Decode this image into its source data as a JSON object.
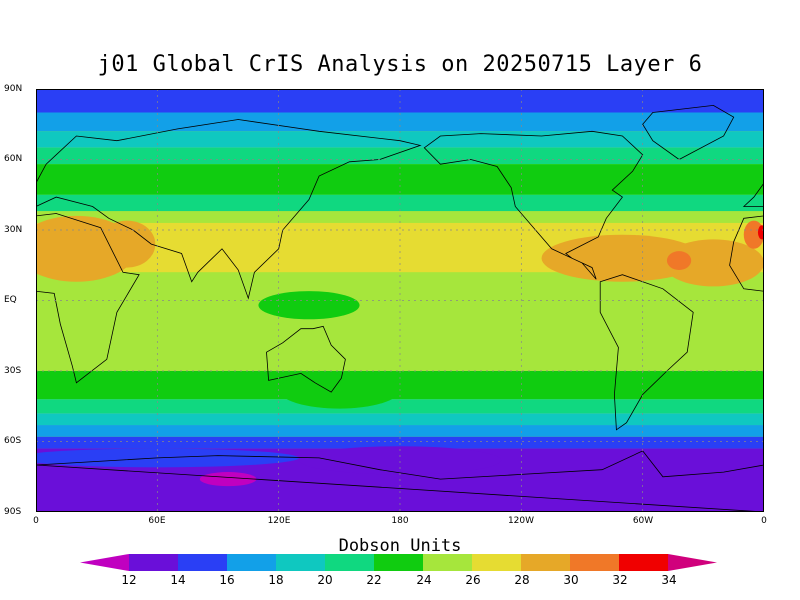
{
  "title": "j01 Global CrIS Analysis on 20250715 Layer 6",
  "y_ticks": [
    "90N",
    "60N",
    "30N",
    "EQ",
    "30S",
    "60S",
    "90S"
  ],
  "x_ticks": [
    "0",
    "60E",
    "120E",
    "180",
    "120W",
    "60W",
    "0"
  ],
  "colorbar": {
    "title": "Dobson Units",
    "labels": [
      "12",
      "14",
      "16",
      "18",
      "20",
      "22",
      "24",
      "26",
      "28",
      "30",
      "32",
      "34"
    ],
    "colors": [
      "#c000c0",
      "#6a0fd9",
      "#2a3ff5",
      "#12a0e8",
      "#0fc8c0",
      "#10d880",
      "#10cc10",
      "#a6e63c",
      "#e6dc32",
      "#e6a828",
      "#f07828",
      "#f00000",
      "#d0007c"
    ]
  },
  "map_layers": {
    "background": "#a6e63c",
    "bands": [
      {
        "from_lat": 90,
        "to_lat": 80,
        "color": "#2a3ff5"
      },
      {
        "from_lat": 80,
        "to_lat": 72,
        "color": "#12a0e8"
      },
      {
        "from_lat": 72,
        "to_lat": 65,
        "color": "#0fc8c0"
      },
      {
        "from_lat": 65,
        "to_lat": 58,
        "color": "#10d880"
      },
      {
        "from_lat": 58,
        "to_lat": 45,
        "color": "#10cc10"
      },
      {
        "from_lat": 45,
        "to_lat": 38,
        "color": "#10d880"
      },
      {
        "from_lat": 38,
        "to_lat": 33,
        "color": "#a6e63c"
      },
      {
        "from_lat": 33,
        "to_lat": 12,
        "color": "#e6dc32"
      },
      {
        "from_lat": 12,
        "to_lat": -8,
        "color": "#a6e63c"
      },
      {
        "from_lat": -8,
        "to_lat": -30,
        "color": "#a6e63c"
      },
      {
        "from_lat": -30,
        "to_lat": -42,
        "color": "#10cc10"
      },
      {
        "from_lat": -42,
        "to_lat": -48,
        "color": "#10d880"
      },
      {
        "from_lat": -48,
        "to_lat": -53,
        "color": "#0fc8c0"
      },
      {
        "from_lat": -53,
        "to_lat": -58,
        "color": "#12a0e8"
      },
      {
        "from_lat": -58,
        "to_lat": -63,
        "color": "#2a3ff5"
      },
      {
        "from_lat": -63,
        "to_lat": -90,
        "color": "#6a0fd9"
      }
    ],
    "blobs": [
      {
        "lon": 20,
        "lat": 22,
        "rlon": 30,
        "rlat": 14,
        "color": "#e6a828"
      },
      {
        "lon": 45,
        "lat": 24,
        "rlon": 14,
        "rlat": 10,
        "color": "#e6a828"
      },
      {
        "lon": 290,
        "lat": 18,
        "rlon": 40,
        "rlat": 10,
        "color": "#e6a828"
      },
      {
        "lon": 335,
        "lat": 16,
        "rlon": 25,
        "rlat": 10,
        "color": "#e6a828"
      },
      {
        "lon": 318,
        "lat": 17,
        "rlon": 6,
        "rlat": 4,
        "color": "#f07828"
      },
      {
        "lon": 355,
        "lat": 28,
        "rlon": 5,
        "rlat": 6,
        "color": "#f07828"
      },
      {
        "lon": 359,
        "lat": 29,
        "rlon": 2,
        "rlat": 3,
        "color": "#f00000"
      },
      {
        "lon": 80,
        "lat": 2,
        "rlon": 20,
        "rlat": 8,
        "color": "#a6e63c"
      },
      {
        "lon": 135,
        "lat": -2,
        "rlon": 25,
        "rlat": 6,
        "color": "#10cc10"
      },
      {
        "lon": 150,
        "lat": -38,
        "rlon": 30,
        "rlat": 8,
        "color": "#10cc10"
      },
      {
        "lon": 180,
        "lat": -68,
        "rlon": 50,
        "rlat": 6,
        "color": "#6a0fd9"
      },
      {
        "lon": 95,
        "lat": -76,
        "rlon": 14,
        "rlat": 3,
        "color": "#c000c0"
      },
      {
        "lon": 60,
        "lat": -67,
        "rlon": 70,
        "rlat": 4,
        "color": "#2a3ff5"
      }
    ],
    "landmasses": [
      {
        "name": "north-america",
        "points": [
          [
            192,
            65
          ],
          [
            200,
            70
          ],
          [
            220,
            71
          ],
          [
            250,
            70
          ],
          [
            275,
            72
          ],
          [
            290,
            70
          ],
          [
            300,
            62
          ],
          [
            295,
            55
          ],
          [
            285,
            47
          ],
          [
            290,
            44
          ],
          [
            282,
            35
          ],
          [
            278,
            27
          ],
          [
            262,
            20
          ],
          [
            265,
            18
          ],
          [
            275,
            14
          ],
          [
            277,
            9
          ],
          [
            270,
            16
          ],
          [
            255,
            22
          ],
          [
            245,
            32
          ],
          [
            237,
            40
          ],
          [
            235,
            48
          ],
          [
            228,
            57
          ],
          [
            215,
            60
          ],
          [
            200,
            58
          ],
          [
            192,
            65
          ]
        ]
      },
      {
        "name": "greenland",
        "points": [
          [
            305,
            80
          ],
          [
            335,
            83
          ],
          [
            345,
            78
          ],
          [
            340,
            70
          ],
          [
            318,
            60
          ],
          [
            305,
            68
          ],
          [
            300,
            75
          ],
          [
            305,
            80
          ]
        ]
      },
      {
        "name": "south-america",
        "points": [
          [
            279,
            8
          ],
          [
            290,
            11
          ],
          [
            310,
            5
          ],
          [
            325,
            -5
          ],
          [
            322,
            -22
          ],
          [
            312,
            -30
          ],
          [
            300,
            -40
          ],
          [
            292,
            -52
          ],
          [
            287,
            -55
          ],
          [
            286,
            -40
          ],
          [
            288,
            -20
          ],
          [
            279,
            -5
          ],
          [
            279,
            8
          ]
        ]
      },
      {
        "name": "africa",
        "points": [
          [
            350,
            35
          ],
          [
            10,
            37
          ],
          [
            32,
            31
          ],
          [
            43,
            12
          ],
          [
            51,
            11
          ],
          [
            40,
            -5
          ],
          [
            35,
            -25
          ],
          [
            20,
            -35
          ],
          [
            18,
            -28
          ],
          [
            12,
            -10
          ],
          [
            9,
            3
          ],
          [
            -10,
            5
          ],
          [
            -17,
            15
          ],
          [
            -15,
            25
          ],
          [
            350,
            35
          ]
        ]
      },
      {
        "name": "eurasia",
        "points": [
          [
            350,
            40
          ],
          [
            355,
            44
          ],
          [
            0,
            50
          ],
          [
            5,
            58
          ],
          [
            10,
            62
          ],
          [
            20,
            70
          ],
          [
            40,
            68
          ],
          [
            70,
            73
          ],
          [
            100,
            77
          ],
          [
            140,
            72
          ],
          [
            180,
            68
          ],
          [
            190,
            66
          ],
          [
            170,
            60
          ],
          [
            155,
            59
          ],
          [
            140,
            53
          ],
          [
            135,
            43
          ],
          [
            122,
            30
          ],
          [
            120,
            22
          ],
          [
            108,
            12
          ],
          [
            105,
            1
          ],
          [
            100,
            13
          ],
          [
            92,
            22
          ],
          [
            80,
            12
          ],
          [
            77,
            8
          ],
          [
            72,
            20
          ],
          [
            57,
            24
          ],
          [
            48,
            30
          ],
          [
            36,
            35
          ],
          [
            28,
            40
          ],
          [
            10,
            44
          ],
          [
            0,
            40
          ],
          [
            350,
            40
          ]
        ]
      },
      {
        "name": "australia",
        "points": [
          [
            114,
            -22
          ],
          [
            122,
            -18
          ],
          [
            131,
            -12
          ],
          [
            137,
            -12
          ],
          [
            142,
            -11
          ],
          [
            146,
            -19
          ],
          [
            153,
            -25
          ],
          [
            151,
            -33
          ],
          [
            146,
            -39
          ],
          [
            138,
            -35
          ],
          [
            131,
            -31
          ],
          [
            115,
            -34
          ],
          [
            114,
            -22
          ]
        ]
      },
      {
        "name": "antarctica",
        "points": [
          [
            0,
            -70
          ],
          [
            60,
            -67
          ],
          [
            90,
            -66
          ],
          [
            140,
            -67
          ],
          [
            170,
            -72
          ],
          [
            200,
            -76
          ],
          [
            240,
            -74
          ],
          [
            280,
            -72
          ],
          [
            300,
            -64
          ],
          [
            310,
            -75
          ],
          [
            340,
            -73
          ],
          [
            360,
            -70
          ],
          [
            360,
            -90
          ],
          [
            0,
            -90
          ]
        ]
      }
    ]
  }
}
